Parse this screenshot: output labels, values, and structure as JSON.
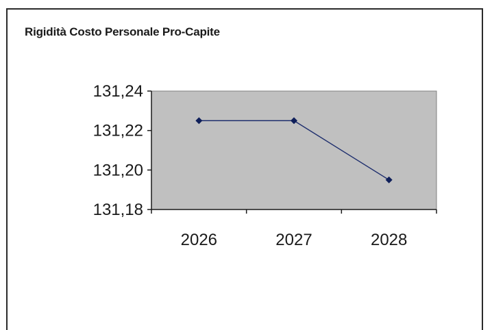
{
  "chart_data": {
    "type": "line",
    "title": "Rigidità Costo Personale Pro-Capite",
    "categories": [
      "2026",
      "2027",
      "2028"
    ],
    "series": [
      {
        "values": [
          131.225,
          131.225,
          131.195
        ]
      }
    ],
    "ylim": [
      131.18,
      131.24
    ],
    "yticks": [
      131.18,
      131.2,
      131.22,
      131.24
    ],
    "ytick_labels": [
      "131,18",
      "131,20",
      "131,22",
      "131,24"
    ],
    "xlabel": "",
    "ylabel": "",
    "legend": "none",
    "grid": false,
    "colors": {
      "plot_area": "#c0c0c0",
      "series_line": "#1f2f6e",
      "marker": "#0f1f5a",
      "axis": "#1a1a1a"
    }
  }
}
